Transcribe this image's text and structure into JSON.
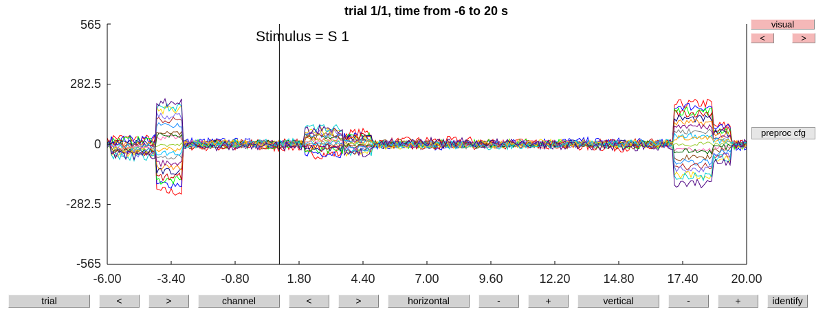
{
  "title": "trial 1/1, time from -6 to 20 s",
  "stimulus_label": "Stimulus = S  1",
  "y_ticks": [
    "565",
    "282.5",
    "0",
    "-282.5",
    "-565"
  ],
  "x_ticks": [
    "-6.00",
    "-3.40",
    "-0.80",
    "1.80",
    "4.40",
    "7.00",
    "9.60",
    "12.20",
    "14.80",
    "17.40",
    "20.00"
  ],
  "side_buttons": {
    "visual": "visual",
    "prev": "<",
    "next": ">",
    "preproc": "preproc cfg"
  },
  "bottom_buttons": {
    "trial": "trial",
    "trial_prev": "<",
    "trial_next": ">",
    "channel": "channel",
    "channel_prev": "<",
    "channel_next": ">",
    "horizontal": "horizontal",
    "horizontal_minus": "-",
    "horizontal_plus": "+",
    "vertical": "vertical",
    "vertical_minus": "-",
    "vertical_plus": "+",
    "identify": "identify"
  },
  "chart_data": {
    "type": "line",
    "title": "trial 1/1, time from -6 to 20 s",
    "xlim": [
      -6,
      20
    ],
    "ylim": [
      -565,
      565
    ],
    "x_ticks": [
      -6.0,
      -3.4,
      -0.8,
      1.8,
      4.4,
      7.0,
      9.6,
      12.2,
      14.8,
      17.4,
      20.0
    ],
    "y_ticks": [
      565,
      282.5,
      0,
      -282.5,
      -565
    ],
    "event_marker": {
      "x": 1.0,
      "label": "Stimulus = S  1"
    },
    "trace_colors": [
      "#ff0000",
      "#0000ff",
      "#00ff00",
      "#cc0000",
      "#000080",
      "#ff8c00",
      "#800080",
      "#808080",
      "#00bfff",
      "#ffa500",
      "#9acd32",
      "#ff69b4",
      "#006400",
      "#8b4513",
      "#1e90ff",
      "#b22222",
      "#7b68ee",
      "#ffd700",
      "#00ced1",
      "#4b0082"
    ]
  }
}
